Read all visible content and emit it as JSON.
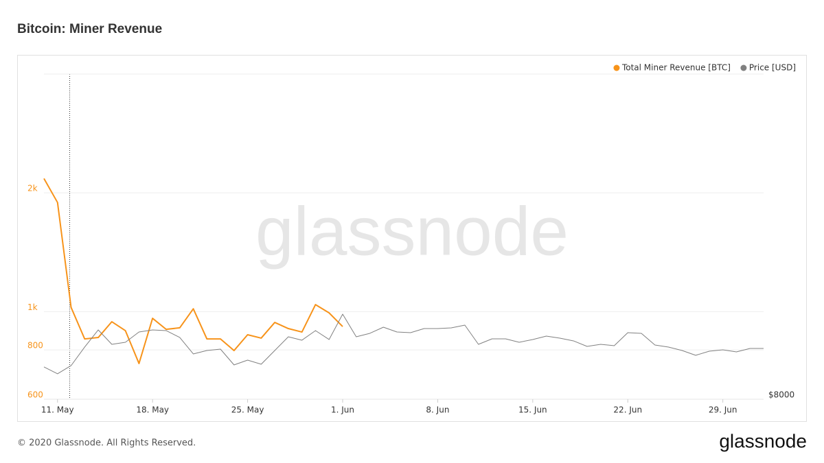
{
  "chart_data": {
    "type": "line",
    "title": "Bitcoin: Miner Revenue",
    "watermark": "glassnode",
    "x": [
      "May 10",
      "May 11",
      "May 12",
      "May 13",
      "May 14",
      "May 15",
      "May 16",
      "May 17",
      "May 18",
      "May 19",
      "May 20",
      "May 21",
      "May 22",
      "May 23",
      "May 24",
      "May 25",
      "May 26",
      "May 27",
      "May 28",
      "May 29",
      "May 30",
      "May 31",
      "Jun 1",
      "Jun 2",
      "Jun 3",
      "Jun 4",
      "Jun 5",
      "Jun 6",
      "Jun 7",
      "Jun 8",
      "Jun 9",
      "Jun 10",
      "Jun 11",
      "Jun 12",
      "Jun 13",
      "Jun 14",
      "Jun 15",
      "Jun 16",
      "Jun 17",
      "Jun 18",
      "Jun 19",
      "Jun 20",
      "Jun 21",
      "Jun 22",
      "Jun 23",
      "Jun 24",
      "Jun 25",
      "Jun 26",
      "Jun 27",
      "Jun 28",
      "Jun 29",
      "Jun 30",
      "Jul 1",
      "Jul 2"
    ],
    "series": [
      {
        "name": "Total Miner Revenue [BTC]",
        "color": "#f7931a",
        "width": 2,
        "values": [
          2175,
          1891,
          1025,
          853,
          860,
          943,
          895,
          739,
          962,
          902,
          910,
          1017,
          853,
          853,
          797,
          874,
          857,
          939,
          906,
          888,
          1042,
          993,
          917,
          null,
          null,
          null,
          null,
          null,
          null,
          null,
          null,
          null,
          null,
          null,
          null,
          null,
          null,
          null,
          null,
          null,
          null,
          null,
          null,
          null,
          null,
          null,
          null,
          null,
          null,
          null,
          null,
          null,
          null,
          null
        ]
      },
      {
        "name": "Price [USD]",
        "color": "#808080",
        "width": 1,
        "axis": "y2",
        "values": [
          8992,
          8781,
          9034,
          9604,
          10131,
          9688,
          9751,
          10068,
          10131,
          10110,
          9899,
          9393,
          9498,
          9540,
          9055,
          9203,
          9076,
          9498,
          9920,
          9815,
          10110,
          9836,
          10616,
          9920,
          10026,
          10215,
          10068,
          10047,
          10173,
          10173,
          10194,
          10279,
          9688,
          9857,
          9857,
          9751,
          9836,
          9941,
          9878,
          9794,
          9625,
          9688,
          9646,
          10047,
          10026,
          9667,
          9604,
          9498,
          9350,
          9477,
          9519,
          9456,
          9561,
          9561
        ]
      }
    ],
    "yscale": "log",
    "ylim": [
      600,
      4000
    ],
    "yticks": [
      600,
      800,
      {
        "value": 1000,
        "label": "1k"
      },
      {
        "value": 2000,
        "label": "2k"
      }
    ],
    "y2lim": [
      8000,
      18000
    ],
    "y2ticks": [
      {
        "value": 8000,
        "label": "$8000"
      }
    ],
    "xticks": [
      {
        "value": "May 11",
        "label": "11. May"
      },
      {
        "value": "May 18",
        "label": "18. May"
      },
      {
        "value": "May 25",
        "label": "25. May"
      },
      {
        "value": "Jun 1",
        "label": "1. Jun"
      },
      {
        "value": "Jun 8",
        "label": "8. Jun"
      },
      {
        "value": "Jun 15",
        "label": "15. Jun"
      },
      {
        "value": "Jun 22",
        "label": "22. Jun"
      },
      {
        "value": "Jun 29",
        "label": "29. Jun"
      }
    ],
    "grid": true,
    "legend": "top-right"
  },
  "footer": {
    "copyright": "© 2020 Glassnode. All Rights Reserved.",
    "logo": "glassnode"
  }
}
